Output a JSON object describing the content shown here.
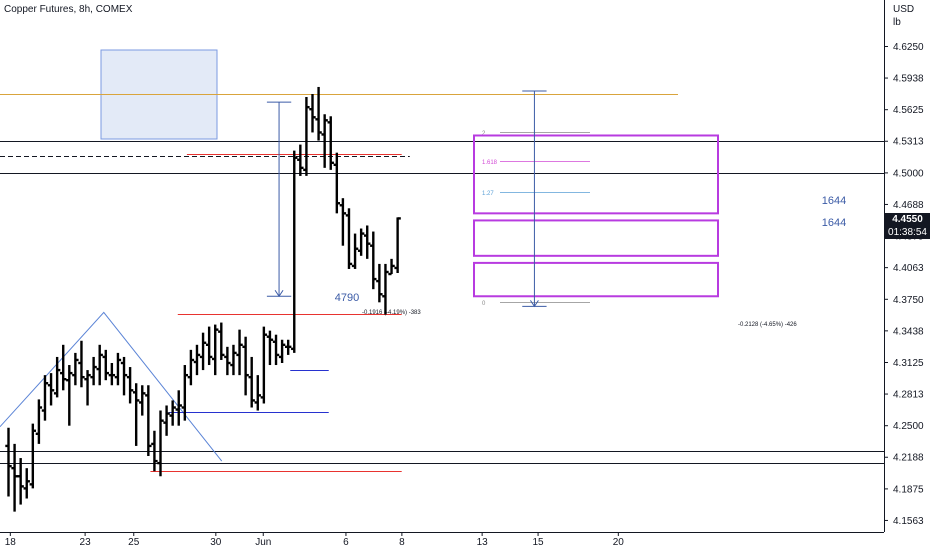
{
  "header": {
    "title": "Copper Futures, 8h, COMEX",
    "unit_top": "USD",
    "unit_bottom": "lb"
  },
  "last_price": "4.4550",
  "countdown": "01:38:54",
  "chart_data": {
    "type": "ohlc-bar",
    "instrument": "Copper Futures",
    "timeframe": "8h",
    "exchange": "COMEX",
    "y_axis_ticks": [
      "4.6250",
      "4.5938",
      "4.5625",
      "4.5313",
      "4.5000",
      "4.4688",
      "4.4375",
      "4.4063",
      "4.3750",
      "4.3438",
      "4.3125",
      "4.2813",
      "4.2500",
      "4.2188",
      "4.1875",
      "4.1563"
    ],
    "ylim": [
      4.152,
      4.662
    ],
    "x_axis_ticks": [
      {
        "label": "18",
        "bar": 0.3
      },
      {
        "label": "23",
        "bar": 12.6
      },
      {
        "label": "25",
        "bar": 20.6
      },
      {
        "label": "30",
        "bar": 34.1
      },
      {
        "label": "Jun",
        "bar": 41.9
      },
      {
        "label": "6",
        "bar": 55.5
      },
      {
        "label": "8",
        "bar": 64.7
      },
      {
        "label": "13",
        "bar": 77.9
      },
      {
        "label": "15",
        "bar": 87.1
      },
      {
        "label": "20",
        "bar": 100.3
      }
    ],
    "ohlc": [
      [
        4.23,
        4.248,
        4.18,
        4.21
      ],
      [
        4.208,
        4.232,
        4.165,
        4.2
      ],
      [
        4.2,
        4.218,
        4.172,
        4.19
      ],
      [
        4.188,
        4.208,
        4.178,
        4.195
      ],
      [
        4.192,
        4.252,
        4.188,
        4.245
      ],
      [
        4.242,
        4.276,
        4.232,
        4.268
      ],
      [
        4.265,
        4.3,
        4.255,
        4.292
      ],
      [
        4.29,
        4.302,
        4.27,
        4.285
      ],
      [
        4.282,
        4.318,
        4.278,
        4.305
      ],
      [
        4.302,
        4.33,
        4.285,
        4.296
      ],
      [
        4.295,
        4.31,
        4.25,
        4.302
      ],
      [
        4.3,
        4.322,
        4.29,
        4.315
      ],
      [
        4.312,
        4.334,
        4.288,
        4.298
      ],
      [
        4.296,
        4.305,
        4.27,
        4.3
      ],
      [
        4.298,
        4.318,
        4.29,
        4.308
      ],
      [
        4.306,
        4.33,
        4.29,
        4.32
      ],
      [
        4.318,
        4.325,
        4.295,
        4.302
      ],
      [
        4.3,
        4.312,
        4.29,
        4.3
      ],
      [
        4.298,
        4.322,
        4.29,
        4.315
      ],
      [
        4.312,
        4.318,
        4.28,
        4.3
      ],
      [
        4.298,
        4.308,
        4.272,
        4.285
      ],
      [
        4.283,
        4.292,
        4.23,
        4.275
      ],
      [
        4.273,
        4.29,
        4.26,
        4.282
      ],
      [
        4.28,
        4.29,
        4.22,
        4.23
      ],
      [
        4.232,
        4.245,
        4.205,
        4.215
      ],
      [
        4.213,
        4.265,
        4.2,
        4.255
      ],
      [
        4.253,
        4.27,
        4.24,
        4.262
      ],
      [
        4.26,
        4.275,
        4.25,
        4.268
      ],
      [
        4.266,
        4.285,
        4.25,
        4.27
      ],
      [
        4.268,
        4.31,
        4.255,
        4.3
      ],
      [
        4.298,
        4.325,
        4.29,
        4.315
      ],
      [
        4.313,
        4.33,
        4.3,
        4.32
      ],
      [
        4.318,
        4.342,
        4.305,
        4.332
      ],
      [
        4.33,
        4.348,
        4.31,
        4.318
      ],
      [
        4.316,
        4.35,
        4.3,
        4.345
      ],
      [
        4.343,
        4.352,
        4.315,
        4.32
      ],
      [
        4.318,
        4.328,
        4.3,
        4.312
      ],
      [
        4.31,
        4.33,
        4.3,
        4.322
      ],
      [
        4.32,
        4.345,
        4.3,
        4.33
      ],
      [
        4.328,
        4.338,
        4.28,
        4.3
      ],
      [
        4.298,
        4.318,
        4.268,
        4.275
      ],
      [
        4.273,
        4.3,
        4.265,
        4.28
      ],
      [
        4.278,
        4.348,
        4.272,
        4.34
      ],
      [
        4.338,
        4.344,
        4.31,
        4.335
      ],
      [
        4.333,
        4.34,
        4.31,
        4.32
      ],
      [
        4.318,
        4.335,
        4.312,
        4.33
      ],
      [
        4.328,
        4.335,
        4.32,
        4.328
      ],
      [
        4.326,
        4.522,
        4.322,
        4.515
      ],
      [
        4.513,
        4.528,
        4.497,
        4.505
      ],
      [
        4.503,
        4.575,
        4.497,
        4.565
      ],
      [
        4.563,
        4.578,
        4.54,
        4.555
      ],
      [
        4.553,
        4.585,
        4.532,
        4.54
      ],
      [
        4.538,
        4.558,
        4.505,
        4.552
      ],
      [
        4.55,
        4.556,
        4.503,
        4.51
      ],
      [
        4.508,
        4.52,
        4.46,
        4.47
      ],
      [
        4.468,
        4.475,
        4.428,
        4.46
      ],
      [
        4.458,
        4.465,
        4.405,
        4.41
      ],
      [
        4.408,
        4.44,
        4.405,
        4.425
      ],
      [
        4.423,
        4.445,
        4.418,
        4.44
      ],
      [
        4.438,
        4.448,
        4.415,
        4.43
      ],
      [
        4.428,
        4.442,
        4.385,
        4.395
      ],
      [
        4.393,
        4.41,
        4.372,
        4.38
      ],
      [
        4.378,
        4.41,
        4.36,
        4.402
      ],
      [
        4.4,
        4.415,
        4.4,
        4.408
      ],
      [
        4.406,
        4.456,
        4.401,
        4.455
      ]
    ],
    "horizontal_lines": [
      {
        "price": 4.578,
        "color": "#d9a43c"
      },
      {
        "price": 4.5313,
        "color": "#131722"
      },
      {
        "price": 4.517,
        "color": "#131722",
        "dashed": true
      },
      {
        "price": 4.5,
        "color": "#131722"
      },
      {
        "price": 4.225,
        "color": "#131722"
      },
      {
        "price": 4.213,
        "color": "#131722"
      }
    ],
    "segments": [
      {
        "from": 28.5,
        "to": 65.0,
        "price": 4.36,
        "color": "#e8332f"
      },
      {
        "from": 30.0,
        "to": 65.0,
        "price": 4.5185,
        "color": "#e8332f"
      },
      {
        "from": 24.0,
        "to": 65.0,
        "price": 4.2055,
        "color": "#e8332f"
      },
      {
        "from": 47.0,
        "to": 53.0,
        "price": 4.305,
        "color": "#2732cf"
      },
      {
        "from": 27.0,
        "to": 53.0,
        "price": 4.264,
        "color": "#2732cf"
      }
    ],
    "fib_levels": [
      {
        "label": "2",
        "price": 4.54,
        "color": "#888888"
      },
      {
        "label": "1.618",
        "price": 4.512,
        "color": "#d24bd6"
      },
      {
        "label": "1.27",
        "price": 4.481,
        "color": "#5a9fd6"
      },
      {
        "label": "0",
        "price": 4.372,
        "color": "#888888"
      }
    ],
    "zones": [
      {
        "top": 4.537,
        "bottom": 4.46
      },
      {
        "top": 4.453,
        "bottom": 4.418
      },
      {
        "top": 4.411,
        "bottom": 4.378
      }
    ],
    "measures": [
      {
        "bar_from": 42.5,
        "bar_to": 46.5,
        "top": 4.57,
        "bottom": 4.378,
        "upper_label": "4790",
        "lower_label": "-0.1916 (-4.19%) -383"
      },
      {
        "bar_from": 84.5,
        "bar_to": 88.5,
        "top": 4.581,
        "bottom": 4.368,
        "upper_label": "1644",
        "lower_label": "-0.2128 (-4.65%) -426"
      }
    ],
    "extra_labels": [
      "1644"
    ]
  }
}
